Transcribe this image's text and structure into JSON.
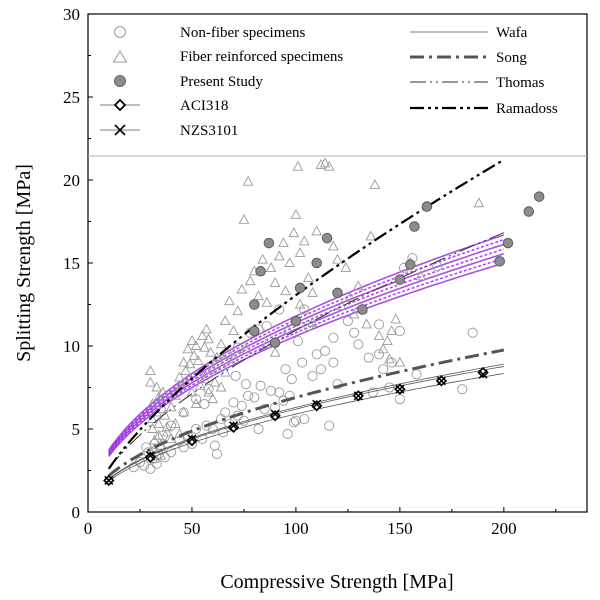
{
  "chart_data": {
    "type": "scatter",
    "xlabel": "Compressive Strength [MPa]",
    "ylabel": "Splitting Strength [MPa]",
    "xlim": [
      0,
      240
    ],
    "ylim": [
      0,
      30
    ],
    "x_ticks": [
      0,
      50,
      100,
      150,
      200
    ],
    "y_ticks": [
      0,
      5,
      10,
      15,
      20,
      25,
      30
    ],
    "x_tick_labels": [
      "0",
      "50",
      "100",
      "150",
      "200"
    ],
    "y_tick_labels": [
      "0",
      "5",
      "10",
      "15",
      "20",
      "25",
      "30"
    ],
    "grid": false,
    "legend_position": "top",
    "legend": {
      "left": [
        {
          "label": "Non-fiber specimens",
          "marker": "circle-open"
        },
        {
          "label": "Fiber reinforced specimens",
          "marker": "triangle-open"
        },
        {
          "label": "Present Study",
          "marker": "circle-filled"
        },
        {
          "label": "ACI318",
          "marker": "diamond-line"
        },
        {
          "label": "NZS3101",
          "marker": "x-line"
        }
      ],
      "right": [
        {
          "label": "Wafa",
          "style": "solid-thin"
        },
        {
          "label": "Song",
          "style": "dash-dot"
        },
        {
          "label": "Thomas",
          "style": "long-dash-dot-dot"
        },
        {
          "label": "Ramadoss",
          "style": "dash-dot-dot"
        }
      ]
    },
    "series": [
      {
        "name": "Non-fiber specimens",
        "marker": "circle-open",
        "color": "#9a9a9a",
        "points": [
          [
            22,
            2.7
          ],
          [
            25,
            3.0
          ],
          [
            27,
            2.8
          ],
          [
            29,
            3.6
          ],
          [
            31,
            3.2
          ],
          [
            33,
            2.9
          ],
          [
            35,
            3.8
          ],
          [
            37,
            3.3
          ],
          [
            28,
            3.9
          ],
          [
            30,
            2.6
          ],
          [
            32,
            4.1
          ],
          [
            34,
            3.5
          ],
          [
            40,
            3.6
          ],
          [
            44,
            4.3
          ],
          [
            46,
            3.9
          ],
          [
            48,
            4.6
          ],
          [
            50,
            4.1
          ],
          [
            52,
            5.0
          ],
          [
            55,
            4.4
          ],
          [
            57,
            5.2
          ],
          [
            60,
            5.0
          ],
          [
            61,
            4.0
          ],
          [
            62,
            3.5
          ],
          [
            64,
            5.6
          ],
          [
            65,
            4.8
          ],
          [
            66,
            6.0
          ],
          [
            68,
            5.3
          ],
          [
            70,
            6.6
          ],
          [
            72,
            5.8
          ],
          [
            74,
            6.4
          ],
          [
            75,
            5.5
          ],
          [
            77,
            7.0
          ],
          [
            80,
            6.9
          ],
          [
            82,
            5.0
          ],
          [
            83,
            7.6
          ],
          [
            85,
            6.2
          ],
          [
            86,
            11.2
          ],
          [
            90,
            6.3
          ],
          [
            92,
            7.2
          ],
          [
            95,
            8.6
          ],
          [
            97,
            7.0
          ],
          [
            99,
            5.4
          ],
          [
            101,
            10.3
          ],
          [
            103,
            9.0
          ],
          [
            104,
            5.6
          ],
          [
            106,
            11.2
          ],
          [
            108,
            8.2
          ],
          [
            110,
            9.5
          ],
          [
            112,
            8.6
          ],
          [
            114,
            9.7
          ],
          [
            116,
            5.2
          ],
          [
            118,
            9.0
          ],
          [
            120,
            7.7
          ],
          [
            125,
            11.5
          ],
          [
            130,
            10.1
          ],
          [
            135,
            9.3
          ],
          [
            137,
            7.2
          ],
          [
            140,
            11.3
          ],
          [
            142,
            8.6
          ],
          [
            145,
            7.5
          ],
          [
            150,
            10.9
          ],
          [
            152,
            14.7
          ],
          [
            156,
            15.3
          ],
          [
            168,
            14.8
          ],
          [
            180,
            7.4
          ],
          [
            185,
            10.8
          ],
          [
            58,
            7.4
          ],
          [
            62,
            8.9
          ],
          [
            67,
            9.5
          ],
          [
            71,
            8.2
          ],
          [
            76,
            7.7
          ],
          [
            88,
            7.3
          ],
          [
            94,
            6.7
          ],
          [
            96,
            4.7
          ],
          [
            98,
            8.0
          ],
          [
            100,
            5.5
          ],
          [
            46,
            6.0
          ],
          [
            52,
            6.8
          ],
          [
            56,
            6.5
          ],
          [
            40,
            5.2
          ],
          [
            36,
            4.6
          ],
          [
            66,
            9.1
          ],
          [
            72,
            9.9
          ],
          [
            78,
            10.8
          ],
          [
            82,
            11.0
          ],
          [
            92,
            12.2
          ],
          [
            104,
            12.2
          ],
          [
            118,
            10.5
          ],
          [
            128,
            10.8
          ],
          [
            140,
            9.5
          ],
          [
            146,
            9.0
          ],
          [
            150,
            6.8
          ],
          [
            158,
            8.3
          ]
        ]
      },
      {
        "name": "Fiber reinforced specimens",
        "marker": "triangle-open",
        "color": "#9a9a9a",
        "points": [
          [
            30,
            8.5
          ],
          [
            30,
            7.8
          ],
          [
            31,
            6.5
          ],
          [
            31,
            5.6
          ],
          [
            31,
            5.0
          ],
          [
            32,
            4.3
          ],
          [
            32,
            3.8
          ],
          [
            32,
            3.2
          ],
          [
            33,
            7.5
          ],
          [
            33,
            6.0
          ],
          [
            34,
            6.9
          ],
          [
            34,
            5.3
          ],
          [
            34,
            4.6
          ],
          [
            35,
            4.0
          ],
          [
            35,
            3.4
          ],
          [
            36,
            7.2
          ],
          [
            37,
            5.8
          ],
          [
            38,
            4.8
          ],
          [
            40,
            6.3
          ],
          [
            42,
            7.0
          ],
          [
            44,
            8.1
          ],
          [
            45,
            7.6
          ],
          [
            46,
            9.0
          ],
          [
            47,
            8.5
          ],
          [
            48,
            9.8
          ],
          [
            49,
            8.9
          ],
          [
            50,
            10.3
          ],
          [
            51,
            9.4
          ],
          [
            52,
            10.0
          ],
          [
            53,
            9.1
          ],
          [
            54,
            8.3
          ],
          [
            55,
            10.6
          ],
          [
            56,
            9.9
          ],
          [
            57,
            11.0
          ],
          [
            58,
            10.4
          ],
          [
            59,
            9.6
          ],
          [
            60,
            8.6
          ],
          [
            61,
            7.8
          ],
          [
            50,
            7.2
          ],
          [
            52,
            6.5
          ],
          [
            54,
            7.6
          ],
          [
            56,
            8.0
          ],
          [
            58,
            7.2
          ],
          [
            60,
            6.8
          ],
          [
            62,
            9.3
          ],
          [
            64,
            10.1
          ],
          [
            66,
            11.5
          ],
          [
            68,
            12.7
          ],
          [
            70,
            10.9
          ],
          [
            72,
            12.1
          ],
          [
            74,
            13.4
          ],
          [
            75,
            17.6
          ],
          [
            77,
            19.9
          ],
          [
            78,
            13.9
          ],
          [
            80,
            14.5
          ],
          [
            82,
            13.0
          ],
          [
            84,
            15.2
          ],
          [
            86,
            12.6
          ],
          [
            88,
            14.7
          ],
          [
            90,
            13.8
          ],
          [
            92,
            15.4
          ],
          [
            94,
            16.2
          ],
          [
            95,
            13.3
          ],
          [
            97,
            15.0
          ],
          [
            99,
            16.8
          ],
          [
            100,
            17.9
          ],
          [
            101,
            20.8
          ],
          [
            102,
            15.6
          ],
          [
            104,
            16.3
          ],
          [
            106,
            14.1
          ],
          [
            108,
            13.2
          ],
          [
            110,
            16.9
          ],
          [
            112,
            20.9
          ],
          [
            114,
            21.0
          ],
          [
            116,
            20.8
          ],
          [
            118,
            16.0
          ],
          [
            120,
            15.2
          ],
          [
            122,
            12.4
          ],
          [
            124,
            14.7
          ],
          [
            126,
            12.9
          ],
          [
            128,
            11.9
          ],
          [
            130,
            13.6
          ],
          [
            132,
            12.2
          ],
          [
            134,
            11.3
          ],
          [
            136,
            16.6
          ],
          [
            138,
            19.7
          ],
          [
            140,
            10.6
          ],
          [
            142,
            9.8
          ],
          [
            144,
            10.3
          ],
          [
            145,
            9.2
          ],
          [
            146,
            10.9
          ],
          [
            148,
            11.6
          ],
          [
            150,
            9.0
          ],
          [
            155,
            15.0
          ],
          [
            160,
            14.2
          ],
          [
            188,
            18.6
          ],
          [
            42,
            5.3
          ],
          [
            44,
            4.7
          ],
          [
            46,
            6.0
          ],
          [
            38,
            5.1
          ],
          [
            40,
            4.4
          ],
          [
            36,
            6.2
          ],
          [
            64,
            7.5
          ],
          [
            66,
            8.4
          ],
          [
            70,
            9.2
          ],
          [
            76,
            9.8
          ],
          [
            80,
            11.0
          ],
          [
            86,
            10.1
          ],
          [
            90,
            9.6
          ],
          [
            96,
            11.0
          ],
          [
            102,
            12.5
          ],
          [
            108,
            11.4
          ]
        ]
      },
      {
        "name": "Present Study",
        "marker": "circle-filled",
        "color": "#8c8c8c",
        "points": [
          [
            80,
            10.9
          ],
          [
            80,
            12.5
          ],
          [
            83,
            14.5
          ],
          [
            87,
            16.2
          ],
          [
            90,
            10.2
          ],
          [
            100,
            11.5
          ],
          [
            102,
            13.5
          ],
          [
            110,
            15.0
          ],
          [
            115,
            16.5
          ],
          [
            120,
            13.2
          ],
          [
            132,
            12.2
          ],
          [
            150,
            14.0
          ],
          [
            155,
            14.9
          ],
          [
            157,
            17.2
          ],
          [
            163,
            18.4
          ],
          [
            198,
            15.1
          ],
          [
            202,
            16.2
          ],
          [
            212,
            18.1
          ],
          [
            217,
            19.0
          ]
        ]
      },
      {
        "name": "ACI318",
        "marker": "diamond",
        "color": "#000000",
        "points": [
          [
            10,
            1.9
          ],
          [
            30,
            3.3
          ],
          [
            50,
            4.3
          ],
          [
            70,
            5.1
          ],
          [
            90,
            5.8
          ],
          [
            110,
            6.4
          ],
          [
            130,
            7.0
          ],
          [
            150,
            7.4
          ],
          [
            170,
            7.9
          ],
          [
            190,
            8.4
          ]
        ]
      },
      {
        "name": "NZS3101",
        "marker": "x",
        "color": "#000000",
        "points": [
          [
            10,
            1.9
          ],
          [
            30,
            3.4
          ],
          [
            50,
            4.4
          ],
          [
            70,
            5.2
          ],
          [
            90,
            5.9
          ],
          [
            110,
            6.5
          ],
          [
            130,
            7.0
          ],
          [
            150,
            7.4
          ],
          [
            170,
            7.9
          ],
          [
            190,
            8.3
          ]
        ]
      }
    ],
    "curves": [
      {
        "name": "ACI318",
        "coef": 0.59,
        "exponent": 0.5,
        "x_range": [
          10,
          200
        ],
        "style": "solid-thin",
        "color": "#555555"
      },
      {
        "name": "NZS3101",
        "coef": 0.62,
        "exponent": 0.5,
        "x_range": [
          10,
          200
        ],
        "style": "solid-thin",
        "color": "#555555"
      },
      {
        "name": "Wafa",
        "coef": 0.63,
        "exponent": 0.5,
        "x_range": [
          10,
          200
        ],
        "style": "solid-thin",
        "color": "#555555"
      },
      {
        "name": "Song",
        "coef": 0.69,
        "exponent": 0.5,
        "x_range": [
          10,
          200
        ],
        "style": "dash-dot",
        "color": "#555555"
      },
      {
        "name": "Thomas",
        "coef": 0.63,
        "exponent": 0.62,
        "x_range": [
          10,
          200
        ],
        "style": "long-dash-dot-dot",
        "color": "#333333"
      },
      {
        "name": "Ramadoss",
        "coef": 0.52,
        "exponent": 0.7,
        "x_range": [
          10,
          200
        ],
        "style": "dash-dot-dot",
        "color": "#000000"
      }
    ],
    "band": {
      "color": "#9b30e0",
      "x_range": [
        10,
        200
      ],
      "lines": [
        {
          "coef": 1.06,
          "exponent": 0.5
        },
        {
          "coef": 1.08,
          "exponent": 0.5
        },
        {
          "coef": 1.1,
          "exponent": 0.5
        },
        {
          "coef": 1.12,
          "exponent": 0.5
        },
        {
          "coef": 1.14,
          "exponent": 0.5
        },
        {
          "coef": 1.16,
          "exponent": 0.5
        },
        {
          "coef": 1.18,
          "exponent": 0.5
        }
      ]
    }
  }
}
